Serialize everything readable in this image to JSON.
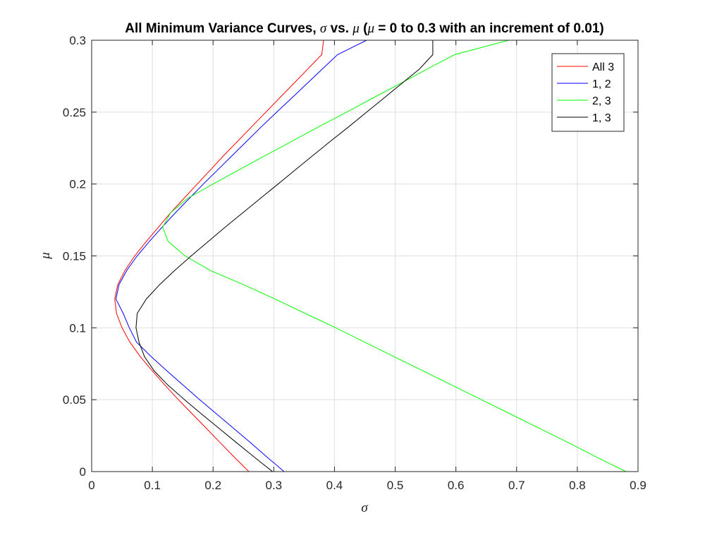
{
  "chart_data": {
    "type": "line",
    "title_prefix": "All Minimum Variance Curves, ",
    "title_sym1": "σ",
    "title_mid": " vs. ",
    "title_sym2": "μ",
    "title_paren_open": " (",
    "title_sym3": "μ",
    "title_suffix": " = 0 to 0.3 with an increment of 0.01)",
    "xlabel": "σ",
    "ylabel": "μ",
    "xlim": [
      0,
      0.9
    ],
    "ylim": [
      0,
      0.3
    ],
    "xticks": [
      0,
      0.1,
      0.2,
      0.3,
      0.4,
      0.5,
      0.6,
      0.7,
      0.8,
      0.9
    ],
    "xtick_labels": [
      "0",
      "0.1",
      "0.2",
      "0.3",
      "0.4",
      "0.5",
      "0.6",
      "0.7",
      "0.8",
      "0.9"
    ],
    "yticks": [
      0,
      0.05,
      0.1,
      0.15,
      0.2,
      0.25,
      0.3
    ],
    "ytick_labels": [
      "0",
      "0.05",
      "0.1",
      "0.15",
      "0.2",
      "0.25",
      "0.3"
    ],
    "grid": true,
    "legend_position": "top-right",
    "series": [
      {
        "name": "All 3",
        "color": "#ff0000",
        "points": [
          [
            0.259,
            0.0
          ],
          [
            0.235,
            0.01
          ],
          [
            0.212,
            0.02
          ],
          [
            0.189,
            0.03
          ],
          [
            0.166,
            0.04
          ],
          [
            0.143,
            0.05
          ],
          [
            0.121,
            0.06
          ],
          [
            0.1,
            0.07
          ],
          [
            0.08,
            0.08
          ],
          [
            0.063,
            0.09
          ],
          [
            0.05,
            0.1
          ],
          [
            0.041,
            0.11
          ],
          [
            0.038,
            0.12
          ],
          [
            0.043,
            0.13
          ],
          [
            0.055,
            0.14
          ],
          [
            0.071,
            0.15
          ],
          [
            0.09,
            0.16
          ],
          [
            0.11,
            0.17
          ],
          [
            0.13,
            0.18
          ],
          [
            0.152,
            0.19
          ],
          [
            0.174,
            0.2
          ],
          [
            0.196,
            0.21
          ],
          [
            0.218,
            0.22
          ],
          [
            0.241,
            0.23
          ],
          [
            0.264,
            0.24
          ],
          [
            0.287,
            0.25
          ],
          [
            0.31,
            0.26
          ],
          [
            0.333,
            0.27
          ],
          [
            0.356,
            0.28
          ],
          [
            0.379,
            0.29
          ],
          [
            0.382,
            0.3
          ]
        ]
      },
      {
        "name": "1, 2",
        "color": "#0000ff",
        "points": [
          [
            0.317,
            0.0
          ],
          [
            0.289,
            0.01
          ],
          [
            0.262,
            0.02
          ],
          [
            0.234,
            0.03
          ],
          [
            0.206,
            0.04
          ],
          [
            0.178,
            0.05
          ],
          [
            0.151,
            0.06
          ],
          [
            0.124,
            0.07
          ],
          [
            0.098,
            0.08
          ],
          [
            0.074,
            0.09
          ],
          [
            0.062,
            0.1
          ],
          [
            0.052,
            0.11
          ],
          [
            0.04,
            0.12
          ],
          [
            0.045,
            0.13
          ],
          [
            0.058,
            0.14
          ],
          [
            0.075,
            0.15
          ],
          [
            0.095,
            0.16
          ],
          [
            0.116,
            0.17
          ],
          [
            0.138,
            0.18
          ],
          [
            0.161,
            0.19
          ],
          [
            0.184,
            0.2
          ],
          [
            0.208,
            0.21
          ],
          [
            0.232,
            0.22
          ],
          [
            0.256,
            0.23
          ],
          [
            0.28,
            0.24
          ],
          [
            0.305,
            0.25
          ],
          [
            0.33,
            0.26
          ],
          [
            0.355,
            0.27
          ],
          [
            0.38,
            0.28
          ],
          [
            0.405,
            0.29
          ],
          [
            0.453,
            0.3
          ]
        ]
      },
      {
        "name": "2, 3",
        "color": "#00ff00",
        "points": [
          [
            0.88,
            0.0
          ],
          [
            0.832,
            0.01
          ],
          [
            0.786,
            0.02
          ],
          [
            0.738,
            0.03
          ],
          [
            0.69,
            0.04
          ],
          [
            0.642,
            0.05
          ],
          [
            0.594,
            0.06
          ],
          [
            0.546,
            0.07
          ],
          [
            0.498,
            0.08
          ],
          [
            0.45,
            0.09
          ],
          [
            0.402,
            0.1
          ],
          [
            0.352,
            0.11
          ],
          [
            0.302,
            0.12
          ],
          [
            0.25,
            0.13
          ],
          [
            0.195,
            0.14
          ],
          [
            0.154,
            0.15
          ],
          [
            0.126,
            0.16
          ],
          [
            0.117,
            0.17
          ],
          [
            0.13,
            0.18
          ],
          [
            0.158,
            0.19
          ],
          [
            0.2,
            0.2
          ],
          [
            0.243,
            0.21
          ],
          [
            0.287,
            0.22
          ],
          [
            0.331,
            0.23
          ],
          [
            0.375,
            0.24
          ],
          [
            0.42,
            0.25
          ],
          [
            0.464,
            0.26
          ],
          [
            0.509,
            0.27
          ],
          [
            0.553,
            0.28
          ],
          [
            0.598,
            0.29
          ],
          [
            0.687,
            0.3
          ]
        ]
      },
      {
        "name": "1, 3",
        "color": "#000000",
        "points": [
          [
            0.298,
            0.0
          ],
          [
            0.268,
            0.01
          ],
          [
            0.239,
            0.02
          ],
          [
            0.21,
            0.03
          ],
          [
            0.181,
            0.04
          ],
          [
            0.153,
            0.05
          ],
          [
            0.126,
            0.06
          ],
          [
            0.103,
            0.07
          ],
          [
            0.087,
            0.08
          ],
          [
            0.078,
            0.09
          ],
          [
            0.073,
            0.1
          ],
          [
            0.075,
            0.11
          ],
          [
            0.09,
            0.12
          ],
          [
            0.112,
            0.13
          ],
          [
            0.137,
            0.14
          ],
          [
            0.164,
            0.15
          ],
          [
            0.192,
            0.16
          ],
          [
            0.22,
            0.17
          ],
          [
            0.249,
            0.18
          ],
          [
            0.278,
            0.19
          ],
          [
            0.307,
            0.2
          ],
          [
            0.336,
            0.21
          ],
          [
            0.365,
            0.22
          ],
          [
            0.394,
            0.23
          ],
          [
            0.424,
            0.24
          ],
          [
            0.453,
            0.25
          ],
          [
            0.482,
            0.26
          ],
          [
            0.511,
            0.27
          ],
          [
            0.54,
            0.28
          ],
          [
            0.562,
            0.29
          ],
          [
            0.562,
            0.3
          ]
        ]
      }
    ]
  }
}
